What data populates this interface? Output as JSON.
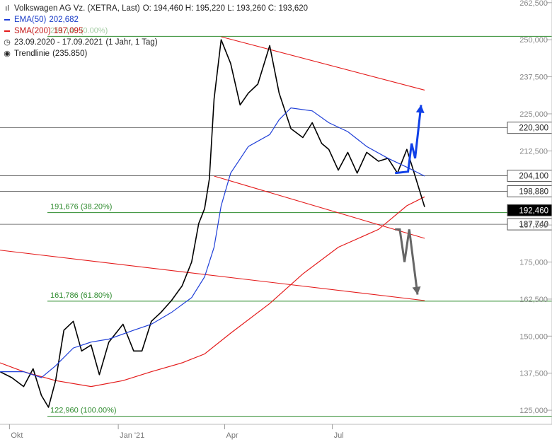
{
  "legend": {
    "title": "Volkswagen AG Vz. (XETRA, Last)",
    "ohlc": "O: 194,460   H: 195,220   L: 193,260   C: 193,620",
    "ema_label": "EMA(50)",
    "ema_value": "202,682",
    "sma_label": "SMA(200)",
    "sma_value": "197,095",
    "range": "23.09.2020 - 17.09.2021",
    "range_detail": "(1 Jahr, 1 Tag)",
    "trend_label": "Trendlinie",
    "trend_value": "(235.850)"
  },
  "colors": {
    "price": "#000000",
    "ema": "#1f3fd8",
    "sma": "#e41b1b",
    "trend": "#e41b1b",
    "fib": "#2e8b2e",
    "level": "#555555",
    "up_arrow": "#1040e8",
    "down_arrow": "#666666"
  },
  "chart_data": {
    "type": "line",
    "title": "Volkswagen AG Vz. (XETRA, Last)",
    "x_range": [
      "2020-09-23",
      "2021-09-17"
    ],
    "ylim": [
      120.25,
      263.4
    ],
    "x_ticks": [
      {
        "date": "2020-10-01",
        "label": "Okt"
      },
      {
        "date": "2021-01-01",
        "label": "Jan '21"
      },
      {
        "date": "2021-04-01",
        "label": "Apr"
      },
      {
        "date": "2021-07-01",
        "label": "Jul"
      }
    ],
    "y_ticks": [
      {
        "value": 262.5,
        "label": "262,500"
      },
      {
        "value": 250.0,
        "label": "250,000"
      },
      {
        "value": 237.5,
        "label": "237,500"
      },
      {
        "value": 225.0,
        "label": "225,000"
      },
      {
        "value": 212.5,
        "label": "212,500"
      },
      {
        "value": 187.5,
        "label": "187,500"
      },
      {
        "value": 175.0,
        "label": "175,000"
      },
      {
        "value": 162.5,
        "label": "162,500"
      },
      {
        "value": 150.0,
        "label": "150,000"
      },
      {
        "value": 137.5,
        "label": "137,500"
      },
      {
        "value": 125.0,
        "label": "125,000"
      }
    ],
    "price_labels": [
      {
        "value": 220.3,
        "label": "220,300"
      },
      {
        "value": 204.1,
        "label": "204,100"
      },
      {
        "value": 198.88,
        "label": "198,880"
      },
      {
        "value": 192.46,
        "label": "192,460",
        "current": true
      },
      {
        "value": 187.74,
        "label": "187,740"
      }
    ],
    "fib_levels": [
      {
        "value": 251.14,
        "label": "251,140 (0.00%)"
      },
      {
        "value": 191.676,
        "label": "191,676 (38.20%)"
      },
      {
        "value": 161.786,
        "label": "161,786 (61.80%)"
      },
      {
        "value": 122.96,
        "label": "122,960 (100.00%)"
      }
    ],
    "price_series": {
      "name": "Volkswagen AG Vz.",
      "x": [
        "2020-09-23",
        "2020-10-03",
        "2020-10-13",
        "2020-10-21",
        "2020-10-28",
        "2020-11-03",
        "2020-11-09",
        "2020-11-16",
        "2020-11-24",
        "2020-12-01",
        "2020-12-09",
        "2020-12-16",
        "2020-12-24",
        "2021-01-05",
        "2021-01-14",
        "2021-01-21",
        "2021-01-29",
        "2021-02-06",
        "2021-02-15",
        "2021-02-24",
        "2021-03-04",
        "2021-03-10",
        "2021-03-15",
        "2021-03-19",
        "2021-03-23",
        "2021-03-29",
        "2021-04-06",
        "2021-04-14",
        "2021-04-21",
        "2021-04-29",
        "2021-05-09",
        "2021-05-17",
        "2021-05-27",
        "2021-06-06",
        "2021-06-14",
        "2021-06-22",
        "2021-06-28",
        "2021-07-06",
        "2021-07-14",
        "2021-07-22",
        "2021-07-30",
        "2021-08-09",
        "2021-08-17",
        "2021-08-25",
        "2021-09-02",
        "2021-09-09",
        "2021-09-17"
      ],
      "y": [
        138,
        136,
        133,
        139,
        130,
        126,
        135,
        152,
        155,
        145,
        147,
        137,
        148,
        154,
        145,
        145,
        155,
        158,
        162,
        167,
        175,
        188,
        193,
        203,
        230,
        250,
        242,
        228,
        232,
        235,
        248,
        232,
        220,
        217,
        222,
        215,
        213,
        206,
        212,
        205,
        212,
        209,
        210,
        205,
        213,
        204,
        193.6
      ]
    },
    "series": [
      {
        "name": "EMA(50)",
        "x": [
          "2020-09-23",
          "2020-10-13",
          "2020-10-28",
          "2020-11-09",
          "2020-11-24",
          "2020-12-09",
          "2020-12-24",
          "2021-01-14",
          "2021-01-29",
          "2021-02-15",
          "2021-03-04",
          "2021-03-15",
          "2021-03-23",
          "2021-03-29",
          "2021-04-06",
          "2021-04-21",
          "2021-05-09",
          "2021-05-17",
          "2021-05-27",
          "2021-06-14",
          "2021-06-28",
          "2021-07-14",
          "2021-07-30",
          "2021-08-17",
          "2021-09-02",
          "2021-09-17"
        ],
        "values": [
          138,
          138,
          136,
          140,
          146,
          148,
          149,
          152,
          154,
          158,
          163,
          170,
          180,
          194,
          205,
          214,
          218,
          223,
          227,
          226,
          222,
          219,
          214,
          210,
          207,
          204
        ]
      },
      {
        "name": "SMA(200)",
        "x": [
          "2020-09-23",
          "2020-10-13",
          "2020-11-09",
          "2020-12-09",
          "2021-01-05",
          "2021-01-29",
          "2021-02-24",
          "2021-03-15",
          "2021-04-06",
          "2021-05-09",
          "2021-06-06",
          "2021-07-06",
          "2021-08-09",
          "2021-09-02",
          "2021-09-17"
        ],
        "values": [
          141,
          138,
          135,
          133,
          135,
          138,
          141,
          144,
          151,
          161,
          171,
          180,
          186,
          194,
          197
        ]
      }
    ],
    "trend_lines": [
      {
        "name": "Trendlinie",
        "x": [
          "2021-03-29",
          "2021-09-17"
        ],
        "values": [
          251,
          233
        ]
      },
      {
        "name": "Trendlinie",
        "x": [
          "2021-03-23",
          "2021-09-17"
        ],
        "values": [
          204,
          183
        ]
      },
      {
        "name": "Trendlinie",
        "x": [
          "2020-09-23",
          "2021-09-17"
        ],
        "values": [
          179,
          162
        ]
      }
    ],
    "scenarios": [
      {
        "direction": "up",
        "x": [
          "2021-08-23",
          "2021-09-03",
          "2021-09-06",
          "2021-09-09",
          "2021-09-14"
        ],
        "values": [
          205,
          205.5,
          215,
          210,
          228
        ]
      },
      {
        "direction": "down",
        "x": [
          "2021-08-23",
          "2021-08-27",
          "2021-08-31",
          "2021-09-04",
          "2021-09-11"
        ],
        "values": [
          186,
          186,
          175,
          186,
          164
        ]
      }
    ]
  }
}
